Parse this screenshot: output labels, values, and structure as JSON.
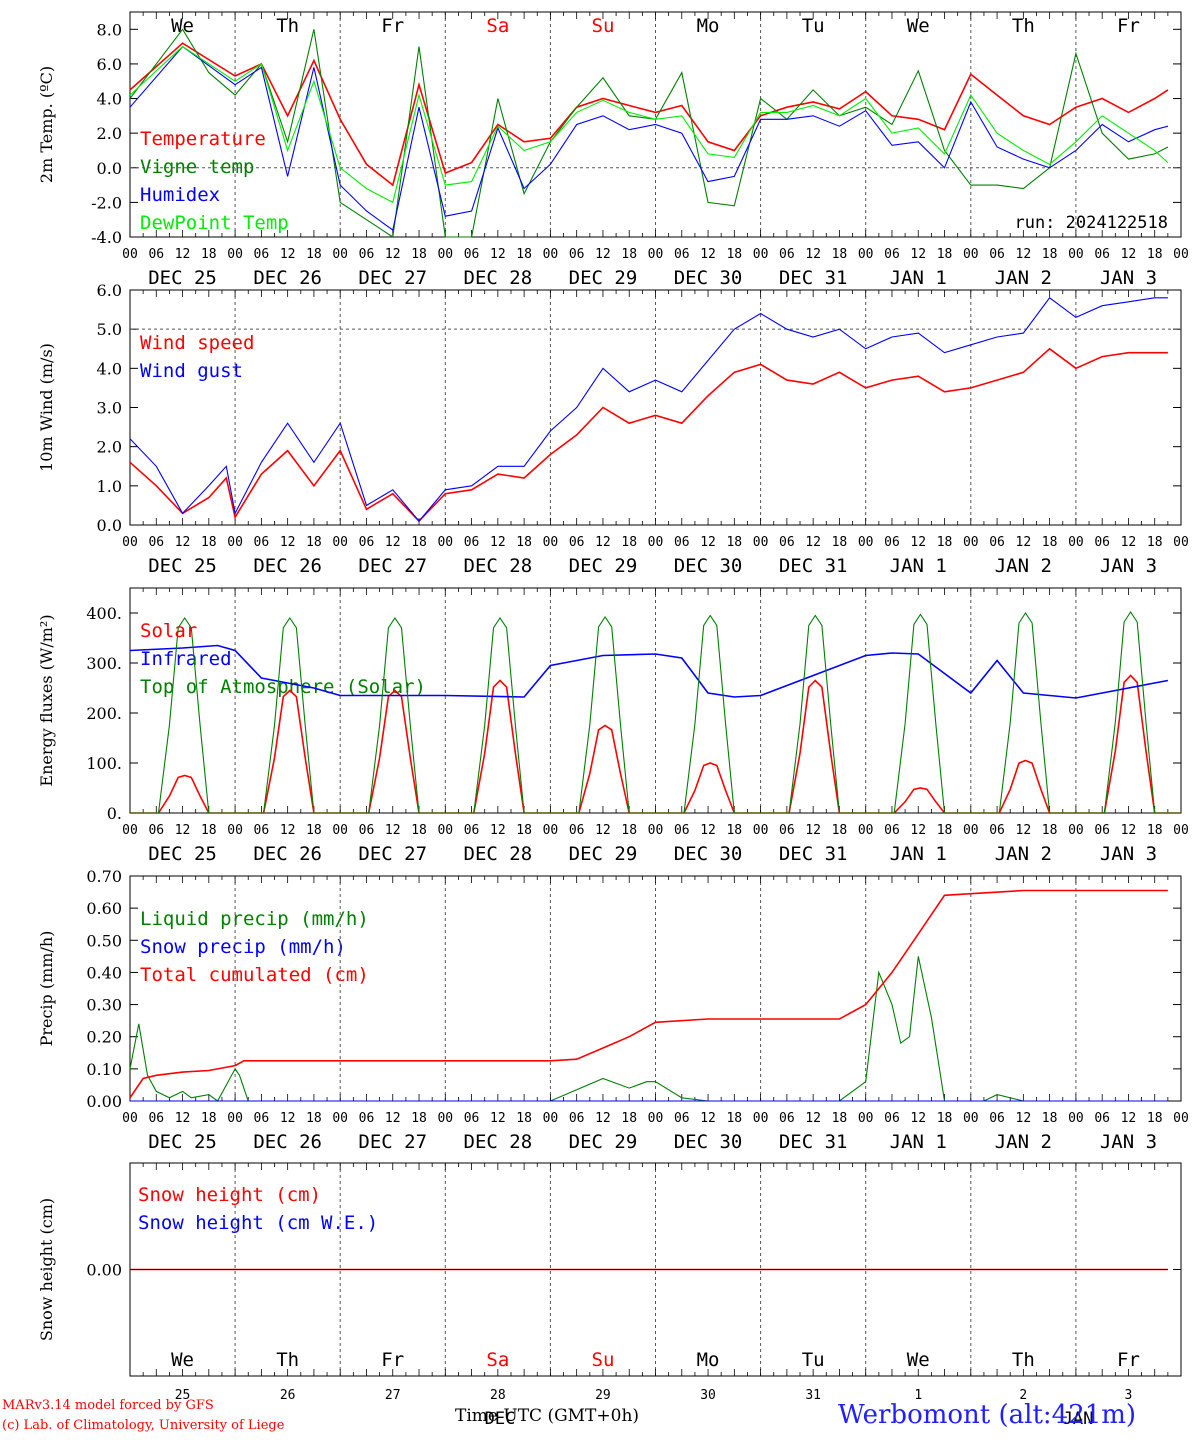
{
  "chart_data": [
    {
      "type": "line",
      "ylabel": "2m Temp. (ºC)",
      "ylim": [
        -4,
        9
      ],
      "yticks": [
        "-4.0",
        "-2.0",
        "0.0",
        "2.0",
        "4.0",
        "6.0",
        "8.0"
      ],
      "ref_line": 0,
      "annotation": "run: 2024122518",
      "weekday_row": true,
      "series": [
        {
          "name": "Temperature",
          "color": "#ff0000",
          "x": [
            0,
            12,
            24,
            30,
            36,
            42,
            48,
            54,
            60,
            66,
            72,
            78,
            84,
            90,
            96,
            102,
            108,
            114,
            120,
            126,
            132,
            138,
            144,
            150,
            156,
            162,
            168,
            174,
            180,
            186,
            192,
            198,
            204,
            210,
            216,
            222,
            228,
            234,
            237
          ],
          "y": [
            4.5,
            7.2,
            5.3,
            6.0,
            3.0,
            6.2,
            2.8,
            0.2,
            -1.0,
            4.8,
            -0.3,
            0.3,
            2.5,
            1.5,
            1.7,
            3.5,
            4.0,
            3.6,
            3.2,
            3.6,
            1.5,
            1.0,
            3.0,
            3.5,
            3.8,
            3.4,
            4.4,
            3.0,
            2.8,
            2.2,
            5.4,
            4.2,
            3.0,
            2.5,
            3.5,
            4.0,
            3.2,
            4.0,
            4.5
          ]
        },
        {
          "name": "Vigne temp",
          "color": "#008000",
          "x": [
            0,
            6,
            12,
            18,
            24,
            30,
            36,
            42,
            48,
            54,
            60,
            66,
            72,
            78,
            84,
            90,
            96,
            102,
            108,
            114,
            120,
            126,
            132,
            138,
            144,
            150,
            156,
            162,
            168,
            174,
            180,
            186,
            192,
            198,
            204,
            210,
            216,
            222,
            228,
            234,
            237
          ],
          "y": [
            4.0,
            6.0,
            8.0,
            5.5,
            4.2,
            6.0,
            1.5,
            8.0,
            -2.0,
            -3.0,
            -4.0,
            7.0,
            -4.0,
            -4.0,
            4.0,
            -1.5,
            1.5,
            3.5,
            5.2,
            3.0,
            2.8,
            5.5,
            -2.0,
            -2.2,
            4.0,
            2.8,
            4.5,
            3.0,
            3.5,
            2.5,
            5.6,
            1.0,
            -1.0,
            -1.0,
            -1.2,
            0.0,
            6.6,
            2.0,
            0.5,
            0.8,
            1.2
          ]
        },
        {
          "name": "Humidex",
          "color": "#0000ff",
          "x": [
            0,
            12,
            24,
            30,
            36,
            42,
            48,
            54,
            60,
            66,
            72,
            78,
            84,
            90,
            96,
            102,
            108,
            114,
            120,
            126,
            132,
            138,
            144,
            150,
            156,
            162,
            168,
            174,
            180,
            186,
            192,
            198,
            204,
            210,
            216,
            222,
            228,
            234,
            237
          ],
          "y": [
            3.5,
            7.0,
            4.8,
            5.8,
            -0.5,
            5.8,
            -1.0,
            -2.5,
            -3.6,
            3.5,
            -2.8,
            -2.5,
            2.3,
            -1.2,
            0.2,
            2.5,
            3.0,
            2.2,
            2.5,
            2.0,
            -0.8,
            -0.5,
            2.8,
            2.8,
            3.0,
            2.4,
            3.3,
            1.3,
            1.5,
            0.0,
            3.8,
            1.2,
            0.5,
            0.0,
            1.0,
            2.5,
            1.5,
            2.2,
            2.4
          ]
        },
        {
          "name": "DewPoint Temp",
          "color": "#00ee00",
          "x": [
            0,
            12,
            24,
            30,
            36,
            42,
            48,
            54,
            60,
            66,
            72,
            78,
            84,
            90,
            96,
            102,
            108,
            114,
            120,
            126,
            132,
            138,
            144,
            150,
            156,
            162,
            168,
            174,
            180,
            186,
            192,
            198,
            204,
            210,
            216,
            222,
            228,
            234,
            237
          ],
          "y": [
            4.2,
            7.0,
            5.0,
            6.0,
            1.0,
            5.0,
            0.0,
            -1.2,
            -2.0,
            4.2,
            -1.0,
            -0.8,
            2.4,
            1.0,
            1.5,
            3.2,
            3.9,
            3.2,
            2.8,
            3.0,
            0.8,
            0.6,
            3.2,
            3.2,
            3.6,
            3.0,
            4.0,
            2.0,
            2.3,
            0.8,
            4.2,
            2.0,
            1.0,
            0.2,
            1.5,
            3.0,
            2.0,
            1.0,
            0.3
          ]
        }
      ]
    },
    {
      "type": "line",
      "ylabel": "10m Wind (m/s)",
      "ylim": [
        0,
        6
      ],
      "yticks": [
        "0.0",
        "1.0",
        "2.0",
        "3.0",
        "4.0",
        "5.0",
        "6.0"
      ],
      "ref_line": 5,
      "series": [
        {
          "name": "Wind speed",
          "color": "#ff0000",
          "x": [
            0,
            6,
            12,
            18,
            22,
            24,
            30,
            36,
            42,
            48,
            54,
            60,
            66,
            72,
            78,
            84,
            90,
            96,
            102,
            108,
            114,
            120,
            126,
            132,
            138,
            144,
            150,
            156,
            162,
            168,
            174,
            180,
            186,
            192,
            198,
            204,
            210,
            216,
            222,
            228,
            234,
            237
          ],
          "y": [
            1.6,
            1.0,
            0.3,
            0.7,
            1.2,
            0.2,
            1.3,
            1.9,
            1.0,
            1.9,
            0.4,
            0.8,
            0.1,
            0.8,
            0.9,
            1.3,
            1.2,
            1.8,
            2.3,
            3.0,
            2.6,
            2.8,
            2.6,
            3.3,
            3.9,
            4.1,
            3.7,
            3.6,
            3.9,
            3.5,
            3.7,
            3.8,
            3.4,
            3.5,
            3.7,
            3.9,
            4.5,
            4.0,
            4.3,
            4.4,
            4.4,
            4.4
          ]
        },
        {
          "name": "Wind gust",
          "color": "#0000ff",
          "x": [
            0,
            6,
            12,
            18,
            22,
            24,
            30,
            36,
            42,
            48,
            54,
            60,
            66,
            72,
            78,
            84,
            90,
            96,
            102,
            108,
            114,
            120,
            126,
            132,
            138,
            144,
            150,
            156,
            162,
            168,
            174,
            180,
            186,
            192,
            198,
            204,
            210,
            216,
            222,
            228,
            234,
            237
          ],
          "y": [
            2.2,
            1.5,
            0.3,
            1.0,
            1.5,
            0.3,
            1.6,
            2.6,
            1.6,
            2.6,
            0.5,
            0.9,
            0.1,
            0.9,
            1.0,
            1.5,
            1.5,
            2.4,
            3.0,
            4.0,
            3.4,
            3.7,
            3.4,
            4.2,
            5.0,
            5.4,
            5.0,
            4.8,
            5.0,
            4.5,
            4.8,
            4.9,
            4.4,
            4.6,
            4.8,
            4.9,
            5.8,
            5.3,
            5.6,
            5.7,
            5.8,
            5.8
          ]
        }
      ]
    },
    {
      "type": "line",
      "ylabel": "Energy fluxes (W/m²)",
      "ylim": [
        0,
        450
      ],
      "yticks": [
        "0.",
        "100.",
        "200.",
        "300.",
        "400."
      ],
      "series": [
        {
          "name": "Solar",
          "color": "#ff0000",
          "peaks": [
            75,
            245,
            245,
            265,
            175,
            100,
            265,
            50,
            105,
            275
          ]
        },
        {
          "name": "Infrared",
          "color": "#0000ff",
          "x": [
            0,
            12,
            20,
            24,
            30,
            36,
            42,
            48,
            60,
            72,
            90,
            96,
            102,
            108,
            120,
            126,
            132,
            138,
            144,
            168,
            174,
            180,
            192,
            198,
            204,
            216,
            237
          ],
          "y": [
            325,
            330,
            335,
            325,
            270,
            260,
            250,
            235,
            235,
            235,
            232,
            295,
            305,
            315,
            318,
            310,
            240,
            232,
            235,
            315,
            320,
            318,
            240,
            305,
            240,
            230,
            265
          ]
        },
        {
          "name": "Top of Atmosphere (Solar)",
          "color": "#008000",
          "peaks": [
            390,
            390,
            390,
            390,
            392,
            395,
            395,
            397,
            400,
            402
          ]
        }
      ]
    },
    {
      "type": "line",
      "ylabel": "Precip (mm/h)",
      "ylim": [
        0,
        0.7
      ],
      "yticks": [
        "0.00",
        "0.10",
        "0.20",
        "0.30",
        "0.40",
        "0.50",
        "0.60",
        "0.70"
      ],
      "series": [
        {
          "name": "Liquid precip (mm/h)",
          "color": "#008000",
          "x": [
            0,
            2,
            4,
            6,
            9,
            12,
            14,
            18,
            20,
            24,
            25,
            27,
            30,
            48,
            96,
            108,
            114,
            118,
            120,
            126,
            132,
            162,
            168,
            171,
            174,
            176,
            178,
            180,
            183,
            186,
            195,
            198,
            204,
            237
          ],
          "y": [
            0.1,
            0.24,
            0.08,
            0.03,
            0.01,
            0.03,
            0.01,
            0.02,
            0.0,
            0.1,
            0.08,
            0.0,
            0.0,
            0.0,
            0.0,
            0.07,
            0.04,
            0.06,
            0.06,
            0.01,
            0.0,
            0.0,
            0.06,
            0.4,
            0.3,
            0.18,
            0.2,
            0.45,
            0.26,
            0.0,
            0.0,
            0.02,
            0.0,
            0.0
          ]
        },
        {
          "name": "Snow precip (mm/h)",
          "color": "#0000ff",
          "x": [
            0,
            237
          ],
          "y": [
            0,
            0
          ]
        },
        {
          "name": "Total cumulated (cm)",
          "color": "#ff0000",
          "x": [
            0,
            3,
            6,
            12,
            18,
            24,
            26,
            30,
            96,
            102,
            108,
            114,
            120,
            132,
            138,
            162,
            168,
            174,
            180,
            186,
            192,
            204,
            237
          ],
          "y": [
            0.01,
            0.07,
            0.08,
            0.09,
            0.095,
            0.11,
            0.125,
            0.125,
            0.125,
            0.13,
            0.165,
            0.2,
            0.245,
            0.255,
            0.255,
            0.255,
            0.3,
            0.4,
            0.52,
            0.64,
            0.645,
            0.655,
            0.655
          ]
        }
      ]
    },
    {
      "type": "line",
      "ylabel": "Snow height (cm)",
      "yticks": [
        "0.00"
      ],
      "series": [
        {
          "name": "Snow height (cm)",
          "color": "#ff0000",
          "x": [
            0,
            237
          ],
          "y": [
            0,
            0
          ]
        },
        {
          "name": "Snow height (cm W.E.)",
          "color": "#0000ff",
          "x": [
            0,
            237
          ],
          "y": [
            0,
            0
          ]
        }
      ],
      "weekday_row": true,
      "daynum_row": true
    }
  ],
  "axis": {
    "hour_labels": [
      "00",
      "06",
      "12",
      "18"
    ],
    "dates": [
      "DEC 25",
      "DEC 26",
      "DEC 27",
      "DEC 28",
      "DEC 29",
      "DEC 30",
      "DEC 31",
      "JAN  1",
      "JAN  2",
      "JAN  3"
    ],
    "weekdays": [
      {
        "label": "We",
        "color": "#000000"
      },
      {
        "label": "Th",
        "color": "#000000"
      },
      {
        "label": "Fr",
        "color": "#000000"
      },
      {
        "label": "Sa",
        "color": "#ff0000"
      },
      {
        "label": "Su",
        "color": "#ff0000"
      },
      {
        "label": "Mo",
        "color": "#000000"
      },
      {
        "label": "Tu",
        "color": "#000000"
      },
      {
        "label": "We",
        "color": "#000000"
      },
      {
        "label": "Th",
        "color": "#000000"
      },
      {
        "label": "Fr",
        "color": "#000000"
      }
    ],
    "day_numbers": [
      "25",
      "26",
      "27",
      "28",
      "29",
      "30",
      "31",
      "1",
      "2",
      "3"
    ],
    "xlabel": "Time UTC (GMT+0h)",
    "xlabel_overlay_left": "DEC",
    "xlabel_overlay_right": "JAN"
  },
  "footer": {
    "credit_line1": "MARv3.14 model forced by GFS",
    "credit_line2": "(c) Lab. of Climatology, University of Liege",
    "station": "Werbomont (alt:421m)"
  }
}
